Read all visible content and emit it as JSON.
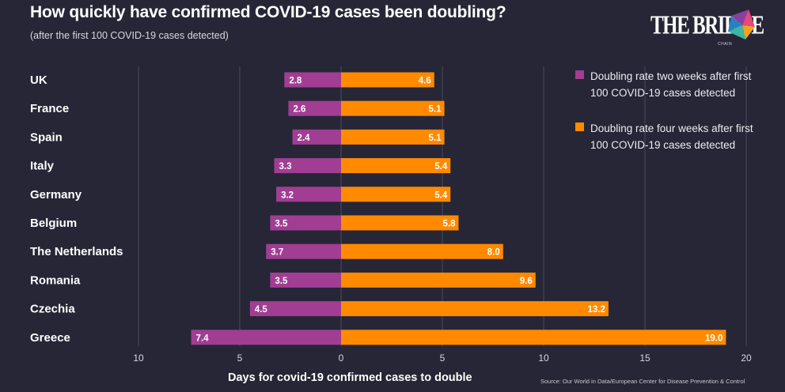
{
  "header": {
    "title": "How quickly have confirmed COVID-19 cases been doubling?",
    "subtitle": "(after the first 100 COVID-19 cases detected)"
  },
  "logo": {
    "text": "THE BRIDGE",
    "subtext": "CHAIN"
  },
  "source": "Source: Our World in Data/European Center for Disease Prevention & Control",
  "colors": {
    "background": "#262636",
    "two_weeks": "#a13d93",
    "four_weeks": "#ff8a00",
    "grid": "#4b4b5e"
  },
  "chart_data": {
    "type": "bar",
    "orientation": "horizontal-diverging",
    "categories": [
      "UK",
      "France",
      "Spain",
      "Italy",
      "Germany",
      "Belgium",
      "The Netherlands",
      "Romania",
      "Czechia",
      "Greece"
    ],
    "series": [
      {
        "name": "Doubling rate two weeks after first 100 COVID-19 cases detected",
        "direction": "left",
        "values": [
          2.8,
          2.6,
          2.4,
          3.3,
          3.2,
          3.5,
          3.7,
          3.5,
          4.5,
          7.4
        ],
        "labels": [
          "2.8",
          "2.6",
          "2.4",
          "3.3",
          "3.2",
          "3.5",
          "3.7",
          "3.5",
          "4.5",
          "7.4"
        ]
      },
      {
        "name": "Doubling rate four weeks after first 100 COVID-19 cases detected",
        "direction": "right",
        "values": [
          4.6,
          5.1,
          5.1,
          5.4,
          5.4,
          5.8,
          8.0,
          9.6,
          13.2,
          19.0
        ],
        "labels": [
          "4.6",
          "5.1",
          "5.1",
          "5.4",
          "5.4",
          "5.8",
          "8.0",
          "9.6",
          "13.2",
          "19.0"
        ]
      }
    ],
    "xlabel": "Days for covid-19 confirmed cases to double",
    "xticks": [
      {
        "value": -10,
        "label": "10"
      },
      {
        "value": -5,
        "label": "5"
      },
      {
        "value": 0,
        "label": "0"
      },
      {
        "value": 5,
        "label": "5"
      },
      {
        "value": 10,
        "label": "10"
      },
      {
        "value": 15,
        "label": "15"
      },
      {
        "value": 20,
        "label": "20"
      }
    ],
    "xlim": [
      -10,
      20
    ],
    "grid": true,
    "legend_position": "top-right"
  }
}
